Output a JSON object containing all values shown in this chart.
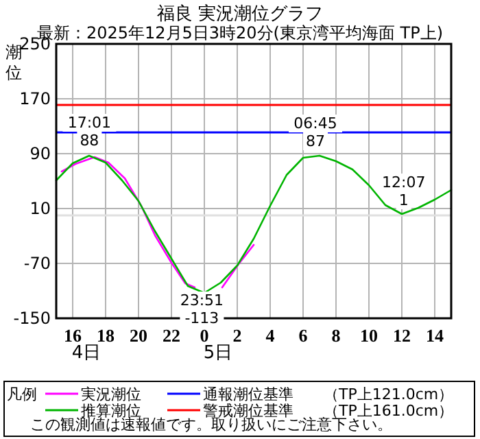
{
  "chart_data": {
    "type": "line",
    "title": "福良 実況潮位グラフ",
    "subtitle": "最新：2025年12月5日3時20分(東京湾平均海面 TP上)",
    "ylabel": "潮位",
    "legend_title": "凡例",
    "legend": "bottom",
    "grid": true,
    "marker": "none",
    "line_style": "solid",
    "xlim": [
      "2025-12-04T15:00",
      "2025-12-05T15:00"
    ],
    "xticks": [
      {
        "value": "2025-12-04T16:00",
        "label": "16"
      },
      {
        "value": "2025-12-04T18:00",
        "label": "18"
      },
      {
        "value": "2025-12-04T20:00",
        "label": "20"
      },
      {
        "value": "2025-12-04T22:00",
        "label": "22"
      },
      {
        "value": "2025-12-05T00:00",
        "label": "0"
      },
      {
        "value": "2025-12-05T02:00",
        "label": "2"
      },
      {
        "value": "2025-12-05T04:00",
        "label": "4"
      },
      {
        "value": "2025-12-05T06:00",
        "label": "6"
      },
      {
        "value": "2025-12-05T08:00",
        "label": "8"
      },
      {
        "value": "2025-12-05T10:00",
        "label": "10"
      },
      {
        "value": "2025-12-05T12:00",
        "label": "12"
      },
      {
        "value": "2025-12-05T14:00",
        "label": "14"
      }
    ],
    "ylim": [
      -150,
      250
    ],
    "yticks": [
      -150,
      -70,
      10,
      90,
      170,
      250
    ],
    "series": [
      {
        "name": "実況潮位",
        "color": "#ff00ff",
        "x": [
          "2025-12-04T15:20",
          "2025-12-04T16:10",
          "2025-12-04T17:20",
          "2025-12-04T18:10",
          "2025-12-04T19:10",
          "2025-12-04T20:10",
          "2025-12-04T21:00",
          "2025-12-04T22:00",
          "2025-12-04T22:50",
          "2025-12-04T23:25",
          null,
          "2025-12-05T01:05",
          "2025-12-05T02:05",
          "2025-12-05T03:00"
        ],
        "values": [
          64,
          75,
          85,
          77,
          54,
          14,
          -29,
          -69,
          -99,
          -105,
          null,
          -105,
          -71,
          -43
        ]
      },
      {
        "name": "推算潮位",
        "color": "#00b400",
        "x": [
          "2025-12-04T15:00",
          "2025-12-04T16:00",
          "2025-12-04T17:00",
          "2025-12-04T18:00",
          "2025-12-04T19:00",
          "2025-12-04T20:00",
          "2025-12-04T21:00",
          "2025-12-04T22:00",
          "2025-12-04T23:00",
          "2025-12-05T00:00",
          "2025-12-05T01:00",
          "2025-12-05T02:00",
          "2025-12-05T03:00",
          "2025-12-05T04:00",
          "2025-12-05T05:00",
          "2025-12-05T06:00",
          "2025-12-05T07:00",
          "2025-12-05T08:00",
          "2025-12-05T09:00",
          "2025-12-05T10:00",
          "2025-12-05T11:00",
          "2025-12-05T12:00",
          "2025-12-05T13:00",
          "2025-12-05T14:00",
          "2025-12-05T15:00"
        ],
        "values": [
          51,
          76,
          87,
          77,
          51,
          21,
          -23,
          -63,
          -103,
          -113,
          -98,
          -73,
          -34,
          14,
          59,
          84,
          87,
          79,
          67,
          44,
          15,
          2,
          11,
          23,
          37
        ]
      }
    ],
    "ref_lines": [
      {
        "axis": "y",
        "value": 121,
        "label": "通報潮位基準　　（TP上121.0cm）",
        "color": "#0000ff"
      },
      {
        "axis": "y",
        "value": 161,
        "label": "警戒潮位基準　　（TP上161.0cm）",
        "color": "#ff0000"
      },
      {
        "axis": "y",
        "value": 0,
        "color": "#e0e0e0"
      }
    ],
    "annotations": [
      "4日",
      "5日",
      {
        "text": "17:01",
        "x": "2025-12-04T17:01",
        "y": 88
      },
      {
        "text": "88",
        "x": "2025-12-04T17:01",
        "y": 88
      },
      {
        "text": "23:51",
        "x": "2025-12-04T23:51",
        "y": -113
      },
      {
        "text": "-113",
        "x": "2025-12-04T23:51",
        "y": -113
      },
      {
        "text": "06:45",
        "x": "2025-12-05T06:45",
        "y": 87
      },
      {
        "text": "87",
        "x": "2025-12-05T06:45",
        "y": 87
      },
      {
        "text": "12:07",
        "x": "2025-12-05T12:07",
        "y": 1
      },
      {
        "text": "1",
        "x": "2025-12-05T12:07",
        "y": 1
      },
      "この観測値は速報値です。取り扱いにご注意下さい。"
    ]
  }
}
